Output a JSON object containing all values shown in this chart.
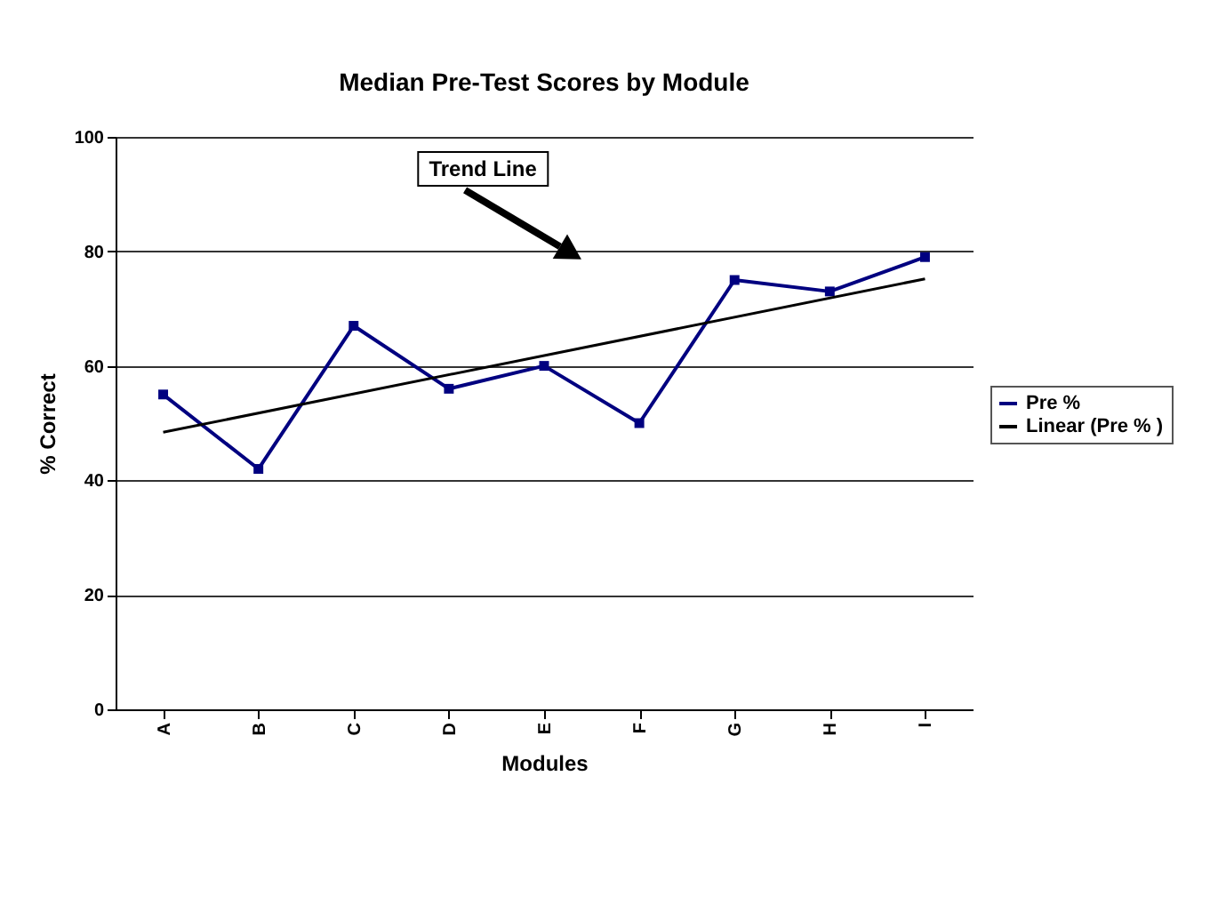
{
  "chart_data": {
    "type": "line",
    "title": "Median Pre-Test Scores by Module",
    "xlabel": "Modules",
    "ylabel": "% Correct",
    "categories": [
      "A",
      "B",
      "C",
      "D",
      "E",
      "F",
      "G",
      "H",
      "I"
    ],
    "series": [
      {
        "name": "Pre %",
        "color": "#000080",
        "marker": "square",
        "values": [
          55,
          42,
          67,
          56,
          60,
          50,
          75,
          73,
          79
        ]
      },
      {
        "name": "Linear (Pre % )",
        "color": "#000000",
        "type": "line",
        "marker": "none",
        "x": [
          "A",
          "I"
        ],
        "values": [
          48.4,
          75.2
        ]
      }
    ],
    "ylim": [
      0,
      100
    ],
    "yticks": [
      0,
      20,
      40,
      60,
      80,
      100
    ],
    "grid": "y",
    "legend": "right",
    "annotations": [
      "Trend Line"
    ]
  }
}
